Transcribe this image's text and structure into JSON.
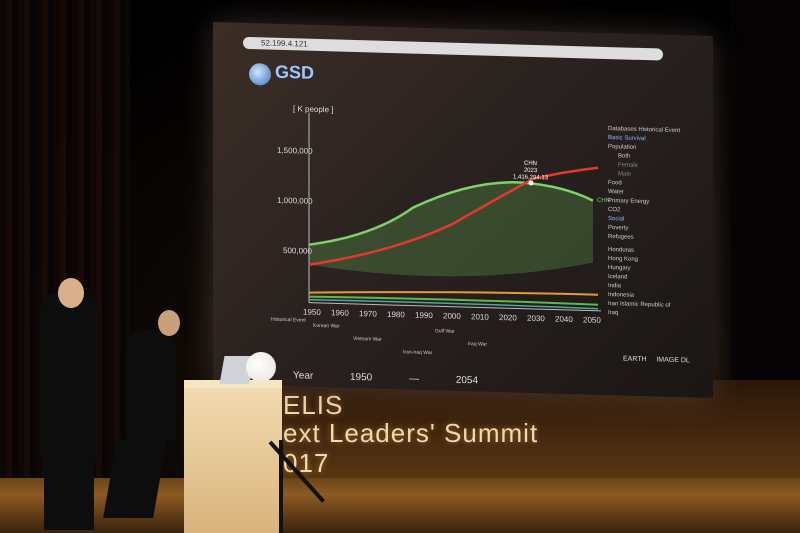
{
  "screen": {
    "address": "52.199.4.121",
    "logo": "GSD",
    "y_unit": "[ K people ]",
    "y_ticks": [
      "1,500,000",
      "1,000,000",
      "500,000"
    ],
    "x_ticks": [
      "1950",
      "1960",
      "1970",
      "1980",
      "1990",
      "2000",
      "2010",
      "2020",
      "2030",
      "2040",
      "2050"
    ],
    "tooltip": {
      "country": "CHN",
      "year": "2023",
      "value": "1,416,294.13"
    },
    "series_labels": {
      "chn": "CHN"
    },
    "historical_event_label": "Historical Event",
    "events": [
      "Korean War",
      "Vietnam War",
      "Gulf War",
      "Iran-Iraq War",
      "Iraq War"
    ],
    "panel": {
      "databases": "Databases  Historical Event",
      "basic_survival": "Basic Survival",
      "population": "Population",
      "options": [
        "Both",
        "Female",
        "Male"
      ],
      "food": "Food",
      "water": "Water",
      "primary_energy": "Primary Energy",
      "co2": "CO2",
      "social": "Social",
      "poverty": "Poverty",
      "refugees": "Refugees",
      "countries": [
        "Honduras",
        "Hong Kong",
        "Hungary",
        "Iceland",
        "India",
        "Indonesia",
        "Iran Islamic Republic of",
        "Iraq"
      ]
    },
    "buttons": {
      "earth": "EARTH",
      "image": "IMAGE DL"
    },
    "year_bar": {
      "label": "Year",
      "from": "1950",
      "sep": "—",
      "to": "2054"
    }
  },
  "backdrop": {
    "line1": "ELIS",
    "line2": "ext Leaders' Summit",
    "line3": "017"
  },
  "colors": {
    "green": "#7bd36a",
    "red": "#e23a2e",
    "orange": "#e39a3a",
    "screen_bg": "#2a2220"
  }
}
